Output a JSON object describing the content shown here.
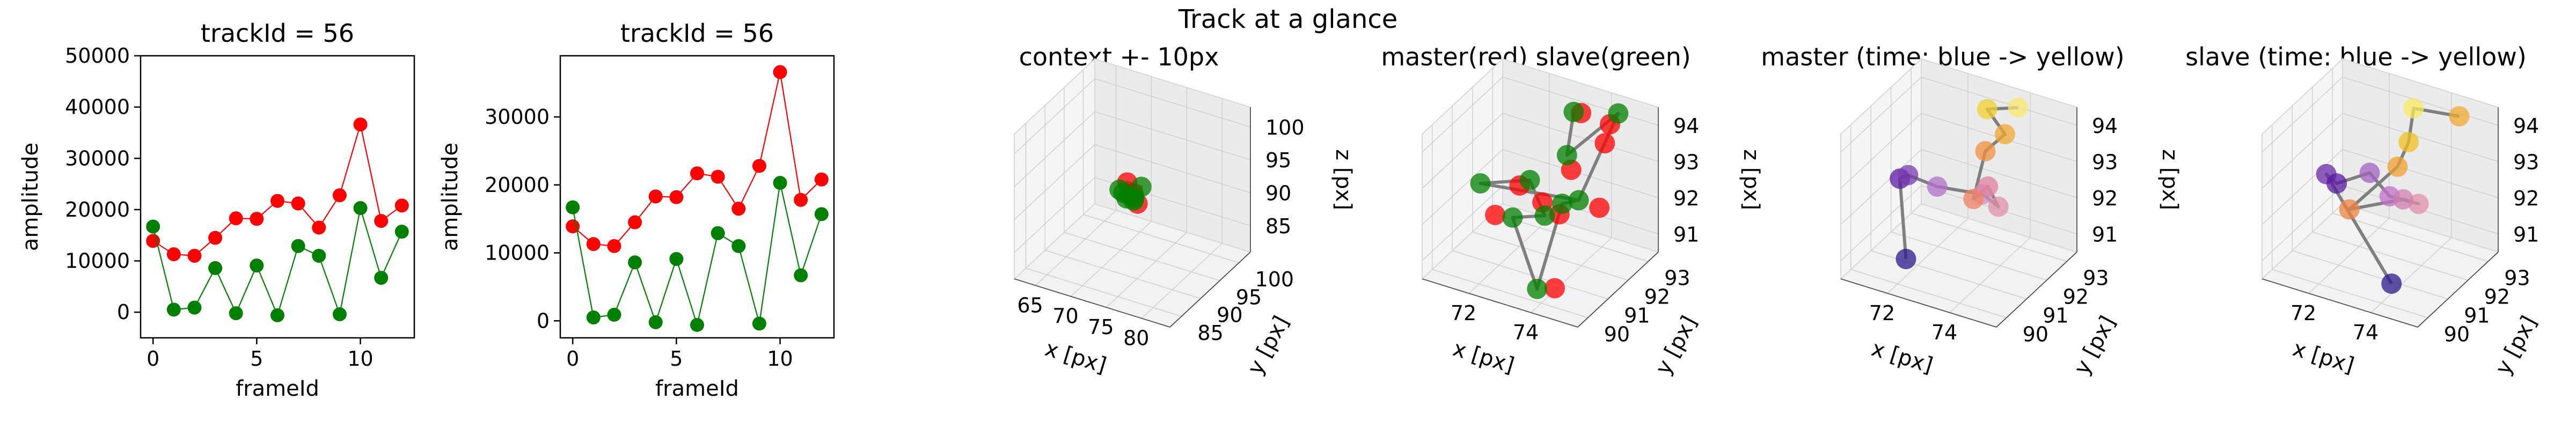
{
  "suptitle": "Track at a glance",
  "colors": {
    "master": "#ff0000",
    "slave": "#008000",
    "path": "#7f7f7f"
  },
  "chart_data": [
    {
      "type": "line",
      "title": "trackId = 56",
      "xlabel": "frameId",
      "ylabel": "amplitude",
      "xlim": [
        -0.6,
        12.6
      ],
      "ylim": [
        -5000,
        50000
      ],
      "xticks": [
        0,
        5,
        10
      ],
      "yticks": [
        0,
        10000,
        20000,
        30000,
        40000,
        50000
      ],
      "x": [
        0,
        1,
        2,
        3,
        4,
        5,
        6,
        7,
        8,
        9,
        10,
        11,
        12
      ],
      "series": [
        {
          "color": "#ff0000",
          "values": [
            13900,
            11300,
            11000,
            14500,
            18300,
            18200,
            21700,
            21200,
            16500,
            22800,
            36600,
            17800,
            20800
          ]
        },
        {
          "color": "#008000",
          "values": [
            16700,
            500,
            900,
            8600,
            -200,
            9100,
            -600,
            12900,
            11000,
            -400,
            20300,
            6700,
            15700
          ]
        }
      ]
    },
    {
      "type": "line",
      "title": "trackId = 56",
      "xlabel": "frameId",
      "ylabel": "amplitude",
      "xlim": [
        -0.6,
        12.6
      ],
      "ylim": [
        -2500,
        39000
      ],
      "xticks": [
        0,
        5,
        10
      ],
      "yticks": [
        0,
        10000,
        20000,
        30000
      ],
      "x": [
        0,
        1,
        2,
        3,
        4,
        5,
        6,
        7,
        8,
        9,
        10,
        11,
        12
      ],
      "series": [
        {
          "color": "#ff0000",
          "values": [
            13900,
            11300,
            11000,
            14500,
            18300,
            18200,
            21700,
            21200,
            16500,
            22800,
            36600,
            17800,
            20800
          ]
        },
        {
          "color": "#008000",
          "values": [
            16700,
            500,
            900,
            8600,
            -200,
            9100,
            -600,
            12900,
            11000,
            -400,
            20300,
            6700,
            15700
          ]
        }
      ]
    },
    {
      "type": "scatter",
      "title": "context +- 10px",
      "xlabel": "x [px]",
      "ylabel": "y [px]",
      "zlabel": "z [px]",
      "xticks": [
        65,
        70,
        75,
        80
      ],
      "yticks": [
        85,
        90,
        95,
        100
      ],
      "zticks": [
        85,
        90,
        95,
        100
      ],
      "xlim": [
        62,
        84
      ],
      "ylim": [
        82,
        103
      ],
      "zlim": [
        81,
        103
      ],
      "points": [
        {
          "x": 73,
          "y": 92,
          "z": 92,
          "c": "#ff0000"
        },
        {
          "x": 74,
          "y": 91,
          "z": 93,
          "c": "#ff0000"
        },
        {
          "x": 72,
          "y": 93,
          "z": 93,
          "c": "#ff0000"
        },
        {
          "x": 74,
          "y": 92,
          "z": 91,
          "c": "#ff0000"
        },
        {
          "x": 73,
          "y": 91,
          "z": 92,
          "c": "#008000"
        },
        {
          "x": 74,
          "y": 93,
          "z": 93,
          "c": "#008000"
        },
        {
          "x": 72,
          "y": 92,
          "z": 92,
          "c": "#008000"
        },
        {
          "x": 73,
          "y": 93,
          "z": 91,
          "c": "#008000"
        },
        {
          "x": 74,
          "y": 91,
          "z": 92,
          "c": "#008000"
        },
        {
          "x": 72,
          "y": 91,
          "z": 93,
          "c": "#008000"
        }
      ],
      "path_points": [
        0,
        4,
        1,
        5,
        2,
        6,
        3,
        7
      ]
    },
    {
      "type": "scatter",
      "title": "master(red) slave(green)",
      "xlabel": "x [px]",
      "ylabel": "y [px]",
      "zlabel": "z [px]",
      "xticks": [
        72,
        74
      ],
      "yticks": [
        90,
        91,
        92,
        93
      ],
      "zticks": [
        91,
        92,
        93,
        94
      ],
      "xlim": [
        70.5,
        75.5
      ],
      "ylim": [
        89.5,
        93.5
      ],
      "zlim": [
        90.5,
        94.5
      ],
      "points": [
        {
          "x": 73.6,
          "y": 92.6,
          "z": 94.3,
          "c": "#ff0000"
        },
        {
          "x": 74.4,
          "y": 92.8,
          "z": 94.1,
          "c": "#ff0000"
        },
        {
          "x": 74.3,
          "y": 92.7,
          "z": 93.6,
          "c": "#ff0000"
        },
        {
          "x": 73.8,
          "y": 91.8,
          "z": 93.2,
          "c": "#ff0000"
        },
        {
          "x": 74.9,
          "y": 91.5,
          "z": 92.6,
          "c": "#ff0000"
        },
        {
          "x": 74.2,
          "y": 90.6,
          "z": 92.7,
          "c": "#ff0000"
        },
        {
          "x": 73.2,
          "y": 91.3,
          "z": 92.4,
          "c": "#ff0000"
        },
        {
          "x": 72.4,
          "y": 91.4,
          "z": 92.6,
          "c": "#ff0000"
        },
        {
          "x": 72.2,
          "y": 90.5,
          "z": 92.2,
          "c": "#ff0000"
        },
        {
          "x": 74.5,
          "y": 89.9,
          "z": 91.1,
          "c": "#ff0000"
        },
        {
          "x": 73.3,
          "y": 92.7,
          "z": 94.2,
          "c": "#008000"
        },
        {
          "x": 74.6,
          "y": 92.9,
          "z": 94.4,
          "c": "#008000"
        },
        {
          "x": 73.6,
          "y": 91.9,
          "z": 93.5,
          "c": "#008000"
        },
        {
          "x": 74.3,
          "y": 91.4,
          "z": 92.7,
          "c": "#008000"
        },
        {
          "x": 71.4,
          "y": 91.0,
          "z": 92.6,
          "c": "#008000"
        },
        {
          "x": 72.6,
          "y": 91.6,
          "z": 92.7,
          "c": "#008000"
        },
        {
          "x": 73.6,
          "y": 90.8,
          "z": 92.4,
          "c": "#008000"
        },
        {
          "x": 72.5,
          "y": 90.9,
          "z": 92.0,
          "c": "#008000"
        },
        {
          "x": 74.0,
          "y": 89.8,
          "z": 91.0,
          "c": "#008000"
        },
        {
          "x": 73.9,
          "y": 91.2,
          "z": 92.6,
          "c": "#008000"
        }
      ],
      "path_points": [
        10,
        12,
        11,
        13,
        14,
        15,
        16,
        17,
        18,
        19,
        13
      ]
    },
    {
      "type": "scatter",
      "title": "master (time: blue -> yellow)",
      "xlabel": "x [px]",
      "ylabel": "y [px]",
      "zlabel": "z [px]",
      "xticks": [
        72,
        74
      ],
      "yticks": [
        90,
        91,
        92,
        93
      ],
      "zticks": [
        91,
        92,
        93,
        94
      ],
      "xlim": [
        70.5,
        75.5
      ],
      "ylim": [
        89.5,
        93.5
      ],
      "zlim": [
        90.5,
        94.5
      ],
      "points": [
        {
          "x": 72.4,
          "y": 89.8,
          "z": 91.4,
          "c": "#2a1a8a"
        },
        {
          "x": 71.3,
          "y": 91.2,
          "z": 92.6,
          "c": "#5a1aa0"
        },
        {
          "x": 71.5,
          "y": 91.3,
          "z": 92.7,
          "c": "#7a3ab0"
        },
        {
          "x": 72.5,
          "y": 91.2,
          "z": 92.7,
          "c": "#b070c8"
        },
        {
          "x": 73.7,
          "y": 91.6,
          "z": 92.6,
          "c": "#d090c0"
        },
        {
          "x": 74.4,
          "y": 91.3,
          "z": 92.6,
          "c": "#e090a8"
        },
        {
          "x": 74.0,
          "y": 91.4,
          "z": 93.0,
          "c": "#e080a0"
        },
        {
          "x": 73.6,
          "y": 91.3,
          "z": 92.6,
          "c": "#f08060"
        },
        {
          "x": 73.4,
          "y": 92.2,
          "z": 93.4,
          "c": "#f09040"
        },
        {
          "x": 73.9,
          "y": 92.4,
          "z": 93.9,
          "c": "#f0a830"
        },
        {
          "x": 73.2,
          "y": 92.6,
          "z": 94.3,
          "c": "#f0d030"
        },
        {
          "x": 74.0,
          "y": 92.9,
          "z": 94.4,
          "c": "#f8e870"
        }
      ],
      "path_points": [
        0,
        1,
        2,
        3,
        4,
        5,
        6,
        7,
        8,
        9,
        10,
        11
      ]
    },
    {
      "type": "scatter",
      "title": "slave (time: blue -> yellow)",
      "xlabel": "x [px]",
      "ylabel": "y [px]",
      "zlabel": "z [px]",
      "xticks": [
        72,
        74
      ],
      "yticks": [
        90,
        91,
        92,
        93
      ],
      "zticks": [
        91,
        92,
        93,
        94
      ],
      "xlim": [
        70.5,
        75.5
      ],
      "ylim": [
        89.5,
        93.5
      ],
      "zlim": [
        90.5,
        94.5
      ],
      "points": [
        {
          "x": 74.4,
          "y": 89.9,
          "z": 91.2,
          "c": "#2a1a8a"
        },
        {
          "x": 71.4,
          "y": 91.3,
          "z": 92.7,
          "c": "#6a2aa8"
        },
        {
          "x": 71.8,
          "y": 91.2,
          "z": 92.6,
          "c": "#5a1aa0"
        },
        {
          "x": 72.6,
          "y": 91.6,
          "z": 92.9,
          "c": "#a060c0"
        },
        {
          "x": 73.5,
          "y": 91.2,
          "z": 92.7,
          "c": "#c070c8"
        },
        {
          "x": 74.3,
          "y": 91.4,
          "z": 92.6,
          "c": "#e090a8"
        },
        {
          "x": 74.0,
          "y": 91.1,
          "z": 92.8,
          "c": "#d080b0"
        },
        {
          "x": 72.4,
          "y": 90.9,
          "z": 92.2,
          "c": "#f08040"
        },
        {
          "x": 73.3,
          "y": 91.9,
          "z": 93.1,
          "c": "#f0a030"
        },
        {
          "x": 73.4,
          "y": 92.3,
          "z": 93.6,
          "c": "#f0c020"
        },
        {
          "x": 73.3,
          "y": 92.7,
          "z": 94.3,
          "c": "#f8e860"
        },
        {
          "x": 74.7,
          "y": 92.8,
          "z": 94.4,
          "c": "#f0a830"
        }
      ],
      "path_points": [
        0,
        1,
        2,
        3,
        4,
        5,
        6,
        7,
        8,
        9,
        10,
        11
      ]
    }
  ]
}
